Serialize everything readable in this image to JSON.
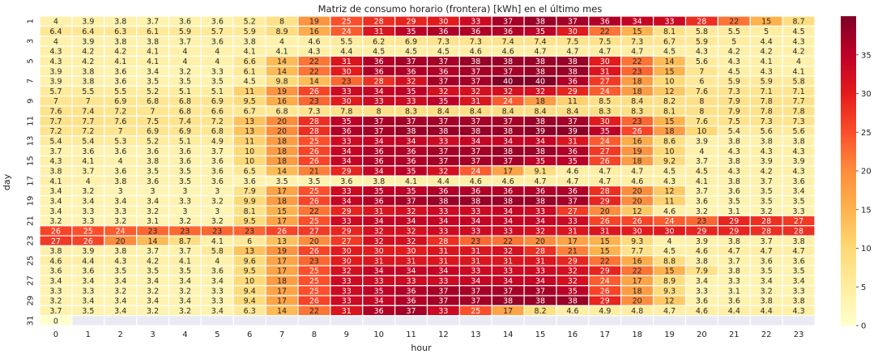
{
  "chart_data": {
    "type": "heatmap",
    "title": "Matriz de consumo horario (frontera) [kWh] en el último mes",
    "xlabel": "hour",
    "ylabel": "day",
    "x_categories": [
      "0",
      "1",
      "2",
      "3",
      "4",
      "5",
      "6",
      "7",
      "8",
      "9",
      "10",
      "11",
      "12",
      "13",
      "14",
      "15",
      "16",
      "17",
      "18",
      "19",
      "20",
      "21",
      "22",
      "23"
    ],
    "y_categories": [
      "1",
      "2",
      "3",
      "4",
      "5",
      "6",
      "7",
      "8",
      "9",
      "10",
      "11",
      "12",
      "13",
      "14",
      "15",
      "16",
      "17",
      "18",
      "19",
      "20",
      "21",
      "22",
      "23",
      "24",
      "25",
      "26",
      "27",
      "28",
      "29",
      "30",
      "31"
    ],
    "y_tick_labels": [
      "1",
      "",
      "3",
      "",
      "5",
      "",
      "7",
      "",
      "9",
      "",
      "11",
      "",
      "13",
      "",
      "15",
      "",
      "17",
      "",
      "19",
      "",
      "21",
      "",
      "23",
      "",
      "25",
      "",
      "27",
      "",
      "29",
      "",
      "31"
    ],
    "values": [
      [
        "4",
        "3.9",
        "3.8",
        "3.7",
        "3.6",
        "3.6",
        "5.2",
        "8",
        "19",
        "25",
        "28",
        "29",
        "30",
        "33",
        "37",
        "38",
        "37",
        "36",
        "34",
        "33",
        "28",
        "22",
        "15",
        "8.7"
      ],
      [
        "6.4",
        "6.4",
        "6.3",
        "6.1",
        "5.9",
        "5.7",
        "5.9",
        "8.9",
        "16",
        "24",
        "31",
        "35",
        "36",
        "36",
        "36",
        "35",
        "30",
        "22",
        "15",
        "8.1",
        "5.8",
        "5.5",
        "5",
        "4.5"
      ],
      [
        "4",
        "3.9",
        "3.8",
        "3.8",
        "3.7",
        "3.6",
        "3.8",
        "4",
        "4.6",
        "5.5",
        "6.2",
        "6.9",
        "7.3",
        "7.3",
        "7.4",
        "7.4",
        "7.5",
        "7.5",
        "7.3",
        "6.7",
        "5.9",
        "5",
        "4.4",
        "4.3"
      ],
      [
        "4.3",
        "4.2",
        "4.2",
        "4.1",
        "4",
        "4",
        "4.1",
        "4.1",
        "4.3",
        "4.4",
        "4.5",
        "4.5",
        "4.5",
        "4.6",
        "4.6",
        "4.7",
        "4.7",
        "4.7",
        "4.7",
        "4.5",
        "4.3",
        "4.2",
        "4.2",
        "4.2"
      ],
      [
        "4.3",
        "4.2",
        "4.1",
        "4.1",
        "4",
        "4",
        "6.6",
        "14",
        "22",
        "31",
        "36",
        "37",
        "37",
        "38",
        "38",
        "38",
        "38",
        "30",
        "22",
        "14",
        "5.6",
        "4.3",
        "4.1",
        "4"
      ],
      [
        "3.9",
        "3.8",
        "3.6",
        "3.4",
        "3.2",
        "3.3",
        "6.1",
        "14",
        "22",
        "30",
        "36",
        "36",
        "36",
        "37",
        "37",
        "38",
        "38",
        "31",
        "23",
        "15",
        "7",
        "4.5",
        "4.3",
        "4.1"
      ],
      [
        "3.9",
        "3.8",
        "3.6",
        "3.5",
        "3.5",
        "3.5",
        "4.5",
        "9.8",
        "14",
        "23",
        "28",
        "32",
        "37",
        "37",
        "40",
        "40",
        "36",
        "27",
        "18",
        "10",
        "6",
        "5.9",
        "5.9",
        "5.8"
      ],
      [
        "5.7",
        "5.5",
        "5.5",
        "5.2",
        "5.1",
        "5.1",
        "11",
        "19",
        "26",
        "33",
        "34",
        "35",
        "32",
        "32",
        "32",
        "32",
        "29",
        "24",
        "18",
        "12",
        "7.6",
        "7.3",
        "7.1",
        "7.1"
      ],
      [
        "7",
        "7",
        "6.9",
        "6.8",
        "6.8",
        "6.9",
        "9.5",
        "16",
        "23",
        "30",
        "33",
        "33",
        "35",
        "31",
        "24",
        "18",
        "11",
        "8.5",
        "8.4",
        "8.2",
        "8",
        "7.9",
        "7.8",
        "7.7"
      ],
      [
        "7.6",
        "7.4",
        "7.2",
        "7",
        "6.8",
        "6.6",
        "6.7",
        "6.8",
        "7.3",
        "7.8",
        "8",
        "8.3",
        "8.4",
        "8.4",
        "8.4",
        "8.4",
        "8.4",
        "8.3",
        "8.3",
        "8.1",
        "8",
        "7.9",
        "7.8",
        "7.8"
      ],
      [
        "7.7",
        "7.7",
        "7.6",
        "7.5",
        "7.4",
        "7.2",
        "13",
        "20",
        "28",
        "35",
        "37",
        "37",
        "37",
        "37",
        "37",
        "38",
        "37",
        "30",
        "23",
        "15",
        "7.6",
        "7.5",
        "7.3",
        "7.3"
      ],
      [
        "7.2",
        "7.2",
        "7",
        "6.9",
        "6.9",
        "6.8",
        "13",
        "20",
        "28",
        "36",
        "37",
        "38",
        "38",
        "38",
        "38",
        "39",
        "39",
        "35",
        "26",
        "18",
        "10",
        "5.4",
        "5.6",
        "5.6"
      ],
      [
        "5.4",
        "5.4",
        "5.3",
        "5.2",
        "5.1",
        "4.9",
        "11",
        "18",
        "25",
        "33",
        "34",
        "34",
        "33",
        "34",
        "34",
        "34",
        "31",
        "24",
        "16",
        "8.6",
        "3.9",
        "3.8",
        "3.8",
        "3.8"
      ],
      [
        "3.7",
        "3.6",
        "3.6",
        "3.6",
        "3.6",
        "3.7",
        "10",
        "18",
        "26",
        "34",
        "36",
        "36",
        "37",
        "37",
        "38",
        "38",
        "36",
        "27",
        "19",
        "10",
        "4",
        "4.3",
        "4.3",
        "4.3"
      ],
      [
        "4.3",
        "4.1",
        "4",
        "3.8",
        "3.6",
        "3.6",
        "10",
        "18",
        "26",
        "34",
        "36",
        "36",
        "37",
        "37",
        "37",
        "35",
        "35",
        "26",
        "18",
        "9.2",
        "3.7",
        "3.8",
        "3.9",
        "3.9"
      ],
      [
        "3.8",
        "3.7",
        "3.6",
        "3.5",
        "3.5",
        "3.6",
        "6.5",
        "14",
        "21",
        "29",
        "34",
        "35",
        "32",
        "24",
        "17",
        "9.1",
        "4.6",
        "4.7",
        "4.7",
        "4.5",
        "4.5",
        "4.3",
        "4.2",
        "4.3"
      ],
      [
        "4.1",
        "4",
        "3.8",
        "3.6",
        "3.5",
        "3.6",
        "3.6",
        "3.5",
        "3.5",
        "3.6",
        "3.8",
        "4.1",
        "4.4",
        "4.6",
        "4.6",
        "4.7",
        "4.7",
        "4.7",
        "4.6",
        "4.3",
        "4.1",
        "3.8",
        "3.7",
        "3.6"
      ],
      [
        "3.4",
        "3.2",
        "3",
        "3",
        "3",
        "3",
        "7.9",
        "17",
        "25",
        "33",
        "35",
        "35",
        "36",
        "36",
        "36",
        "36",
        "36",
        "28",
        "20",
        "12",
        "3.7",
        "3.6",
        "3.5",
        "3.4"
      ],
      [
        "3.4",
        "3.4",
        "3.4",
        "3.4",
        "3.3",
        "3.2",
        "9.9",
        "18",
        "26",
        "34",
        "36",
        "37",
        "38",
        "38",
        "38",
        "38",
        "37",
        "29",
        "20",
        "11",
        "3.6",
        "3.5",
        "3.5",
        "3.5"
      ],
      [
        "3.4",
        "3.3",
        "3.3",
        "3.2",
        "3",
        "3",
        "8.1",
        "15",
        "22",
        "29",
        "31",
        "32",
        "33",
        "33",
        "34",
        "33",
        "27",
        "20",
        "12",
        "4.6",
        "3.2",
        "3.1",
        "3.2",
        "3.3"
      ],
      [
        "3.2",
        "3.3",
        "3.2",
        "3.1",
        "3.2",
        "3.2",
        "9.5",
        "17",
        "25",
        "33",
        "34",
        "34",
        "34",
        "34",
        "34",
        "34",
        "33",
        "26",
        "26",
        "24",
        "23",
        "29",
        "28",
        "27"
      ],
      [
        "26",
        "25",
        "24",
        "23",
        "23",
        "23",
        "23",
        "26",
        "27",
        "29",
        "32",
        "32",
        "33",
        "33",
        "33",
        "32",
        "31",
        "31",
        "30",
        "30",
        "29",
        "29",
        "28",
        "28"
      ],
      [
        "27",
        "26",
        "20",
        "14",
        "8.7",
        "4.1",
        "6",
        "13",
        "20",
        "27",
        "32",
        "32",
        "28",
        "23",
        "22",
        "20",
        "17",
        "15",
        "9.3",
        "4",
        "3.9",
        "3.8",
        "3.7",
        "3.8"
      ],
      [
        "3.8",
        "3.9",
        "3.8",
        "3.7",
        "3.7",
        "5.8",
        "13",
        "19",
        "26",
        "30",
        "30",
        "30",
        "31",
        "31",
        "32",
        "28",
        "21",
        "15",
        "7.7",
        "4.5",
        "4.6",
        "4.7",
        "4.7",
        "4.7"
      ],
      [
        "4.6",
        "4.4",
        "4.3",
        "4.2",
        "4.1",
        "4",
        "9.6",
        "17",
        "23",
        "30",
        "31",
        "31",
        "31",
        "31",
        "31",
        "31",
        "29",
        "22",
        "16",
        "8.8",
        "3.8",
        "3.7",
        "3.6",
        "3.6"
      ],
      [
        "3.6",
        "3.6",
        "3.5",
        "3.5",
        "3.5",
        "3.6",
        "9.5",
        "17",
        "25",
        "32",
        "34",
        "34",
        "34",
        "33",
        "33",
        "33",
        "32",
        "29",
        "22",
        "15",
        "7.9",
        "3.8",
        "3.5",
        "3.5"
      ],
      [
        "3.4",
        "3.4",
        "3.4",
        "3.4",
        "3.4",
        "3.4",
        "10",
        "18",
        "25",
        "33",
        "33",
        "33",
        "33",
        "34",
        "34",
        "34",
        "32",
        "24",
        "17",
        "8.9",
        "3.4",
        "3.3",
        "3.4",
        "3.4"
      ],
      [
        "3.3",
        "3.3",
        "3.2",
        "3.2",
        "3.2",
        "3.3",
        "9.4",
        "17",
        "25",
        "33",
        "35",
        "36",
        "37",
        "37",
        "37",
        "37",
        "35",
        "26",
        "18",
        "9.3",
        "3.3",
        "3.1",
        "3.2",
        "3.3"
      ],
      [
        "3.2",
        "3.4",
        "3.4",
        "3.4",
        "3.4",
        "3.3",
        "9.4",
        "17",
        "26",
        "33",
        "34",
        "36",
        "37",
        "37",
        "38",
        "38",
        "38",
        "29",
        "20",
        "12",
        "3.6",
        "3.6",
        "3.8",
        "3.8"
      ],
      [
        "3.7",
        "3.5",
        "3.4",
        "3.2",
        "3.2",
        "3.4",
        "6.3",
        "14",
        "22",
        "31",
        "36",
        "37",
        "33",
        "25",
        "17",
        "8.2",
        "4.6",
        "4.9",
        "4.8",
        "4.7",
        "4.6",
        "4.4",
        "4.4",
        "4.3"
      ],
      [
        "0",
        "",
        "",
        "",
        "",
        "",
        "",
        "",
        "",
        "",
        "",
        "",
        "",
        "",
        "",
        "",
        "",
        "",
        "",
        "",
        "",
        "",
        "",
        ""
      ]
    ],
    "colorbar": {
      "min": 0,
      "max": 40,
      "ticks": [
        "0",
        "5",
        "10",
        "15",
        "20",
        "25",
        "30",
        "35"
      ],
      "colormap": [
        "#ffffcc",
        "#ffeda0",
        "#fed976",
        "#feb24c",
        "#fd8d3c",
        "#fc4e2a",
        "#e31a1c",
        "#bd0026",
        "#800026"
      ]
    },
    "missing_color": "#eaeaf2",
    "grid_line_color": "#ffffff"
  }
}
